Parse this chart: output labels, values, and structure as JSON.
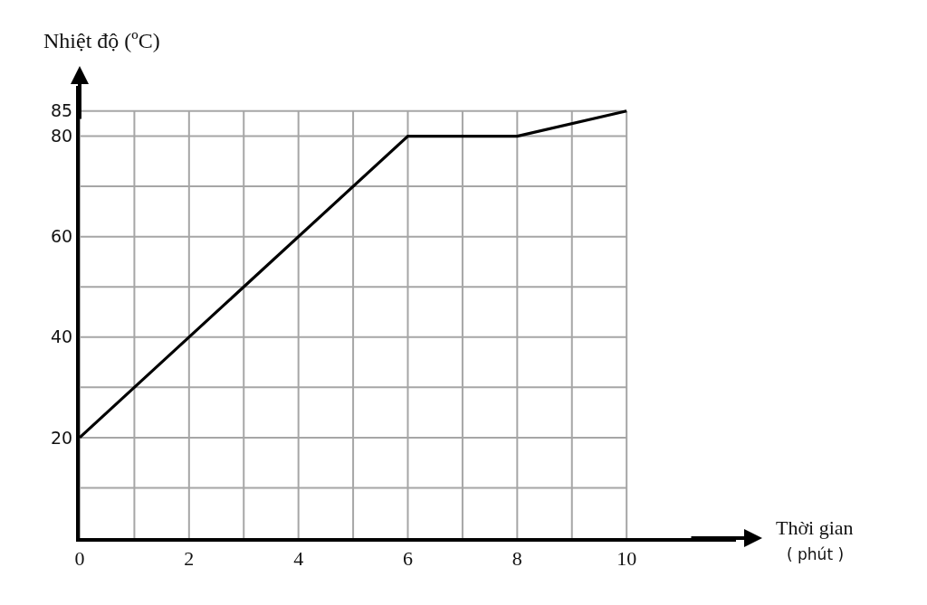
{
  "chart_data": {
    "type": "line",
    "xlabel": "Thời gian\n( phút )",
    "ylabel": "Nhiệt độ (ºC)",
    "x": [
      0,
      6,
      8,
      10
    ],
    "series": [
      {
        "color": "#000000",
        "values": [
          20,
          80,
          80,
          85
        ]
      }
    ],
    "xlim": [
      0,
      12
    ],
    "ylim": [
      0,
      90
    ],
    "xticks": [
      0,
      {
        "value": 1,
        "label": null
      },
      2,
      {
        "value": 3,
        "label": null
      },
      4,
      {
        "value": 5,
        "label": null
      },
      6,
      {
        "value": 7,
        "label": null
      },
      8,
      {
        "value": 9,
        "label": null
      },
      10
    ],
    "yticks": [
      {
        "value": 10,
        "label": null
      },
      20,
      {
        "value": 30,
        "label": null
      },
      40,
      {
        "value": 50,
        "label": null
      },
      60,
      {
        "value": 70,
        "label": null
      },
      80,
      85
    ],
    "grid": true,
    "marker": "none",
    "line_style": "solid"
  }
}
